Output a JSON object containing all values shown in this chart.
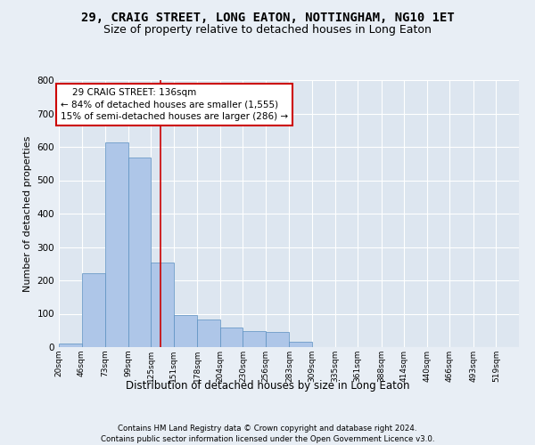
{
  "title": "29, CRAIG STREET, LONG EATON, NOTTINGHAM, NG10 1ET",
  "subtitle": "Size of property relative to detached houses in Long Eaton",
  "xlabel": "Distribution of detached houses by size in Long Eaton",
  "ylabel": "Number of detached properties",
  "footer_line1": "Contains HM Land Registry data © Crown copyright and database right 2024.",
  "footer_line2": "Contains public sector information licensed under the Open Government Licence v3.0.",
  "bar_edges": [
    20,
    46,
    73,
    99,
    125,
    151,
    178,
    204,
    230,
    256,
    283,
    309,
    335,
    361,
    388,
    414,
    440,
    466,
    493,
    519,
    545
  ],
  "bar_heights": [
    10,
    222,
    614,
    568,
    253,
    97,
    82,
    58,
    47,
    46,
    15,
    0,
    0,
    0,
    0,
    0,
    0,
    0,
    0,
    0
  ],
  "bar_color": "#aec6e8",
  "bar_edge_color": "#5a8fc0",
  "vline_x": 136,
  "vline_color": "#cc0000",
  "annotation_line1": "    29 CRAIG STREET: 136sqm",
  "annotation_line2": "← 84% of detached houses are smaller (1,555)",
  "annotation_line3": "15% of semi-detached houses are larger (286) →",
  "annotation_box_color": "#cc0000",
  "ylim": [
    0,
    800
  ],
  "yticks": [
    0,
    100,
    200,
    300,
    400,
    500,
    600,
    700,
    800
  ],
  "bg_color": "#e8eef5",
  "plot_bg_color": "#dde6f0",
  "grid_color": "#ffffff",
  "title_fontsize": 10,
  "subtitle_fontsize": 9,
  "annotation_fontsize": 7.5
}
